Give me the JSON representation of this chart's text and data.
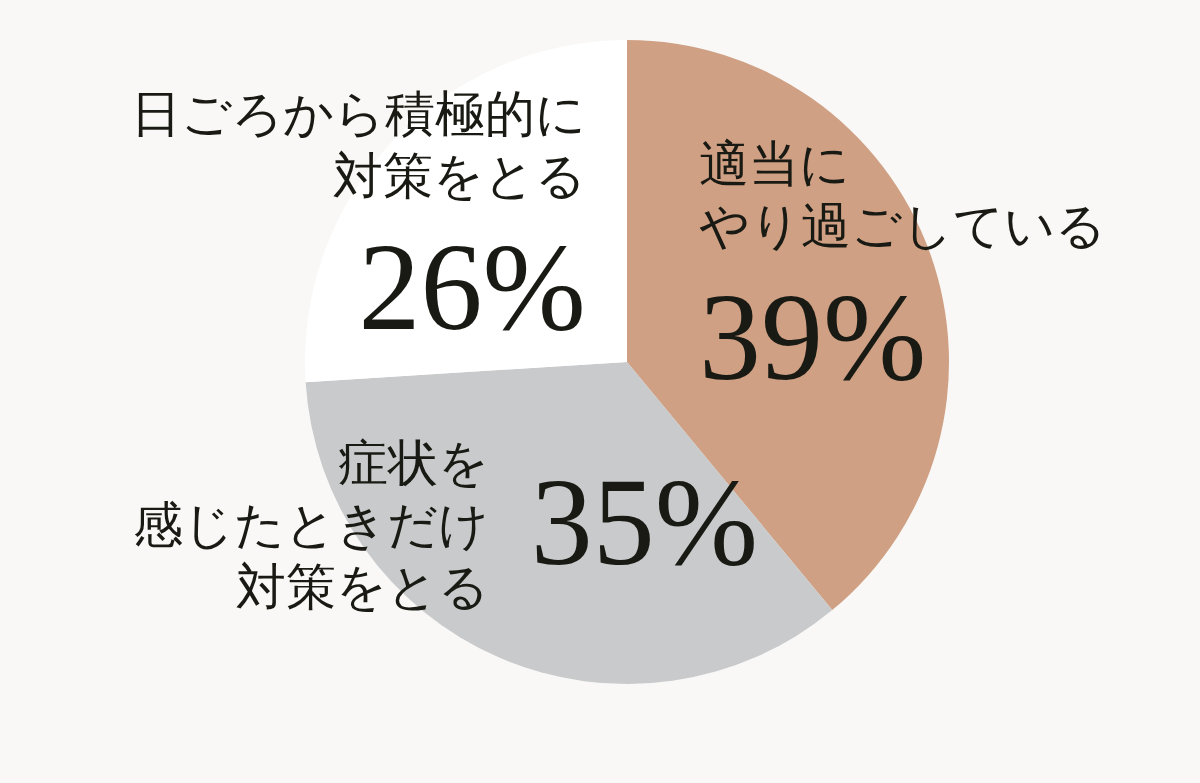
{
  "chart_data": {
    "type": "pie",
    "categories": [
      "適当にやり過ごしている",
      "症状を感じたときだけ対策をとる",
      "日ごろから積極的に対策をとる"
    ],
    "values": [
      39,
      35,
      26
    ],
    "colors": [
      "#cfa083",
      "#c8cacc",
      "#ffffff"
    ],
    "value_labels": [
      "39%",
      "35%",
      "26%"
    ]
  }
}
